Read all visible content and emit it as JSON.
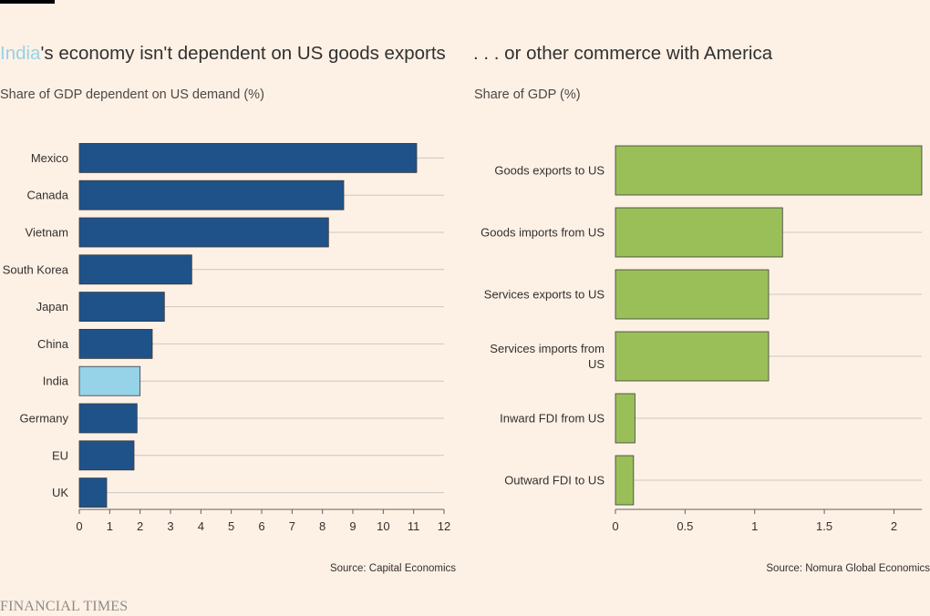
{
  "left": {
    "title_highlight": "India",
    "title_rest": "'s economy isn't dependent on US goods exports",
    "subtitle": "Share of GDP dependent on US demand (%)",
    "source": "Source: Capital Economics"
  },
  "right": {
    "title": ". . . or other commerce with America",
    "subtitle": "Share of GDP (%)",
    "source": "Source: Nomura Global Economics"
  },
  "brand": "FINANCIAL TIMES",
  "colors": {
    "background": "#fdf1e6",
    "dark_blue": "#1f5289",
    "light_blue": "#96d3e8",
    "green": "#9abf58",
    "grid": "#cbc6c1"
  },
  "chart_data": [
    {
      "type": "bar",
      "orientation": "horizontal",
      "title": "India's economy isn't dependent on US goods exports",
      "ylabel": "Share of GDP dependent on US demand (%)",
      "categories": [
        "Mexico",
        "Canada",
        "Vietnam",
        "South Korea",
        "Japan",
        "China",
        "India",
        "Germany",
        "EU",
        "UK"
      ],
      "values": [
        11.1,
        8.7,
        8.2,
        3.7,
        2.8,
        2.4,
        2.0,
        1.9,
        1.8,
        0.9
      ],
      "highlight": "India",
      "xlim": [
        0,
        12
      ],
      "ticks": [
        0,
        1,
        2,
        3,
        4,
        5,
        6,
        7,
        8,
        9,
        10,
        11,
        12
      ],
      "tick_labels": [
        "0",
        "1",
        "2",
        "3",
        "4",
        "5",
        "6",
        "7",
        "8",
        "9",
        "10",
        "11",
        "12"
      ],
      "grid": true
    },
    {
      "type": "bar",
      "orientation": "horizontal",
      "title": ". . . or other commerce with America",
      "ylabel": "Share of GDP (%)",
      "categories": [
        [
          "Goods exports to US"
        ],
        [
          "Goods imports from US"
        ],
        [
          "Services exports to US"
        ],
        [
          "Services imports from",
          "US"
        ],
        [
          "Inward FDI from US"
        ],
        [
          "Outward FDI to US"
        ]
      ],
      "values": [
        2.2,
        1.2,
        1.1,
        1.1,
        0.14,
        0.13
      ],
      "xlim": [
        0,
        2.2
      ],
      "ticks": [
        0,
        0.5,
        1,
        1.5,
        2
      ],
      "tick_labels": [
        "0",
        "0.5",
        "1",
        "1.5",
        "2"
      ],
      "grid": true
    }
  ]
}
